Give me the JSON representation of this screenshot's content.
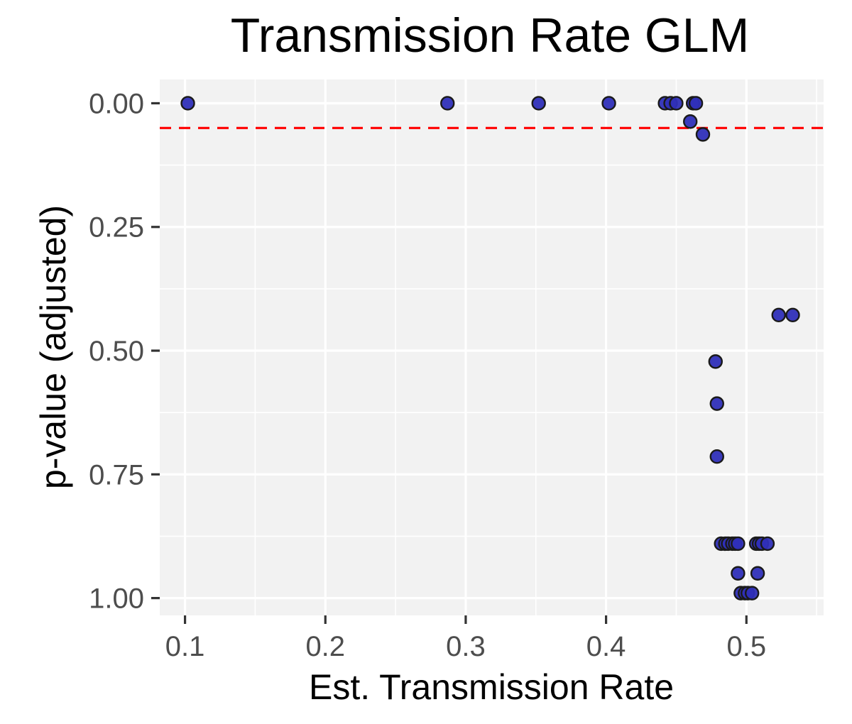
{
  "chart_data": {
    "type": "scatter",
    "title": "Transmission Rate GLM",
    "xlabel": "Est. Transmission Rate",
    "ylabel": "p-value (adjusted)",
    "xlim": [
      0.082,
      0.555
    ],
    "ylim": [
      -0.048,
      1.035
    ],
    "y_reversed": true,
    "x_ticks": [
      0.1,
      0.2,
      0.3,
      0.4,
      0.5
    ],
    "x_tick_labels": [
      "0.1",
      "0.2",
      "0.3",
      "0.4",
      "0.5"
    ],
    "y_ticks": [
      0.0,
      0.25,
      0.5,
      0.75,
      1.0
    ],
    "y_tick_labels": [
      "0.00",
      "0.25",
      "0.50",
      "0.75",
      "1.00"
    ],
    "reference_line": {
      "y": 0.05,
      "style": "dashed",
      "color": "#ff0000"
    },
    "grid": true,
    "legend": "none",
    "colors": {
      "point_fill": "#2f2fb8",
      "point_stroke": "#1a1a1a",
      "panel_bg": "#f2f2f2"
    },
    "points": [
      {
        "x": 0.102,
        "y": 0.0
      },
      {
        "x": 0.287,
        "y": 0.0
      },
      {
        "x": 0.352,
        "y": 0.0
      },
      {
        "x": 0.402,
        "y": 0.0
      },
      {
        "x": 0.442,
        "y": 0.0
      },
      {
        "x": 0.446,
        "y": 0.0
      },
      {
        "x": 0.45,
        "y": 0.0
      },
      {
        "x": 0.462,
        "y": 0.0
      },
      {
        "x": 0.464,
        "y": 0.0
      },
      {
        "x": 0.46,
        "y": 0.037
      },
      {
        "x": 0.469,
        "y": 0.063
      },
      {
        "x": 0.523,
        "y": 0.428
      },
      {
        "x": 0.533,
        "y": 0.428
      },
      {
        "x": 0.478,
        "y": 0.522
      },
      {
        "x": 0.479,
        "y": 0.607
      },
      {
        "x": 0.479,
        "y": 0.714
      },
      {
        "x": 0.482,
        "y": 0.89
      },
      {
        "x": 0.485,
        "y": 0.89
      },
      {
        "x": 0.487,
        "y": 0.89
      },
      {
        "x": 0.49,
        "y": 0.89
      },
      {
        "x": 0.492,
        "y": 0.89
      },
      {
        "x": 0.494,
        "y": 0.89
      },
      {
        "x": 0.507,
        "y": 0.89
      },
      {
        "x": 0.509,
        "y": 0.89
      },
      {
        "x": 0.511,
        "y": 0.89
      },
      {
        "x": 0.515,
        "y": 0.89
      },
      {
        "x": 0.494,
        "y": 0.95
      },
      {
        "x": 0.508,
        "y": 0.95
      },
      {
        "x": 0.496,
        "y": 0.99
      },
      {
        "x": 0.499,
        "y": 0.99
      },
      {
        "x": 0.501,
        "y": 0.99
      },
      {
        "x": 0.504,
        "y": 0.99
      }
    ]
  }
}
